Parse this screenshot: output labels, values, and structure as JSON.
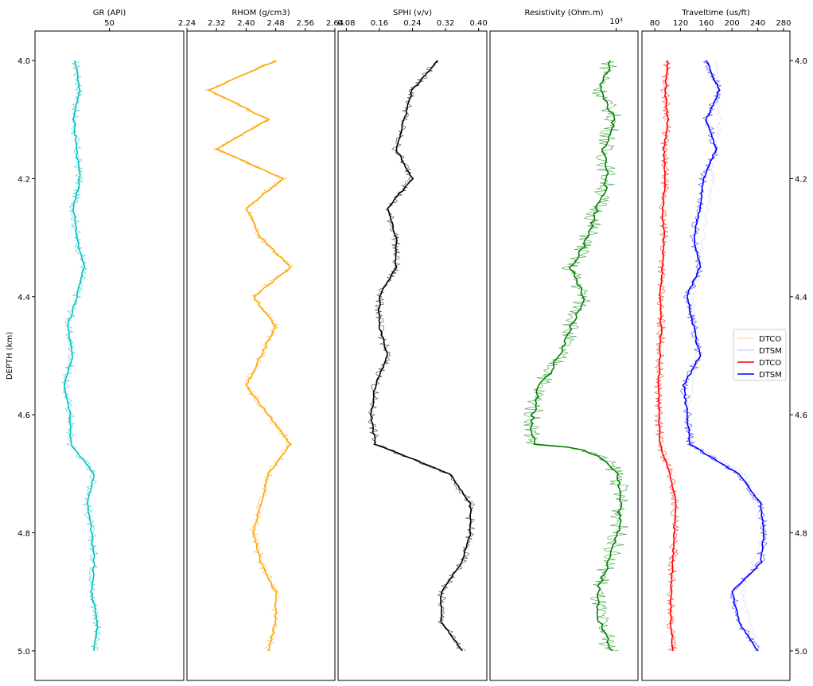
{
  "chart_data": {
    "type": "line",
    "depth_axis": {
      "label": "DEPTH (km)",
      "range": [
        3.95,
        5.05
      ],
      "ticks": [
        "4.0",
        "4.2",
        "4.4",
        "4.6",
        "4.8",
        "5.0"
      ]
    },
    "tracks": [
      {
        "title": "GR (API)",
        "scale": "linear",
        "xlim": [
          0,
          100
        ],
        "ticks": [
          {
            "value": 50,
            "label": "50"
          }
        ],
        "series": [
          {
            "name": "GR",
            "color": "#00bfbf",
            "style": "bold",
            "depth": [
              4.0,
              4.05,
              4.1,
              4.15,
              4.2,
              4.25,
              4.3,
              4.35,
              4.4,
              4.45,
              4.5,
              4.55,
              4.6,
              4.65,
              4.7,
              4.75,
              4.8,
              4.85,
              4.9,
              4.95,
              5.0
            ],
            "values": [
              27,
              30,
              26,
              28,
              30,
              26,
              28,
              33,
              28,
              22,
              25,
              20,
              24,
              24,
              40,
              35,
              38,
              40,
              38,
              42,
              40
            ]
          }
        ]
      },
      {
        "title": "RHOM (g/cm3)",
        "scale": "linear",
        "xlim": [
          2.24,
          2.64
        ],
        "ticks": [
          {
            "value": 2.24,
            "label": "2.24"
          },
          {
            "value": 2.32,
            "label": "2.32"
          },
          {
            "value": 2.4,
            "label": "2.40"
          },
          {
            "value": 2.48,
            "label": "2.48"
          },
          {
            "value": 2.56,
            "label": "2.56"
          },
          {
            "value": 2.64,
            "label": "2.64"
          }
        ],
        "series": [
          {
            "name": "RHOM",
            "color": "#ffa500",
            "style": "bold",
            "depth": [
              4.0,
              4.05,
              4.1,
              4.15,
              4.2,
              4.25,
              4.3,
              4.35,
              4.4,
              4.45,
              4.5,
              4.55,
              4.6,
              4.65,
              4.7,
              4.75,
              4.8,
              4.85,
              4.9,
              4.95,
              5.0
            ],
            "values": [
              2.48,
              2.3,
              2.46,
              2.32,
              2.5,
              2.4,
              2.44,
              2.52,
              2.42,
              2.48,
              2.44,
              2.4,
              2.46,
              2.52,
              2.46,
              2.44,
              2.42,
              2.44,
              2.48,
              2.48,
              2.46
            ]
          }
        ]
      },
      {
        "title": "SPHI (v/v)",
        "scale": "linear",
        "xlim": [
          0.06,
          0.42
        ],
        "ticks": [
          {
            "value": 0.08,
            "label": "0.08"
          },
          {
            "value": 0.16,
            "label": "0.16"
          },
          {
            "value": 0.24,
            "label": "0.24"
          },
          {
            "value": 0.32,
            "label": "0.32"
          },
          {
            "value": 0.4,
            "label": "0.40"
          }
        ],
        "series": [
          {
            "name": "SPHI",
            "color": "#000000",
            "style": "bold",
            "depth": [
              4.0,
              4.05,
              4.1,
              4.15,
              4.2,
              4.25,
              4.3,
              4.35,
              4.4,
              4.45,
              4.5,
              4.55,
              4.6,
              4.65,
              4.7,
              4.75,
              4.8,
              4.85,
              4.9,
              4.95,
              5.0
            ],
            "values": [
              0.3,
              0.24,
              0.22,
              0.2,
              0.24,
              0.18,
              0.2,
              0.2,
              0.16,
              0.16,
              0.18,
              0.15,
              0.14,
              0.15,
              0.33,
              0.38,
              0.38,
              0.36,
              0.31,
              0.31,
              0.36
            ]
          }
        ]
      },
      {
        "title": "Resistivity (Ohm.m)",
        "scale": "log",
        "xlim": [
          5,
          2500
        ],
        "ticks": [
          {
            "value": 1000,
            "label": "10³"
          }
        ],
        "series": [
          {
            "name": "Resistivity",
            "color": "#008000",
            "style": "bold",
            "depth": [
              4.0,
              4.05,
              4.1,
              4.15,
              4.2,
              4.25,
              4.3,
              4.35,
              4.4,
              4.45,
              4.5,
              4.55,
              4.6,
              4.65,
              4.7,
              4.75,
              4.8,
              4.85,
              4.9,
              4.95,
              5.0
            ],
            "values": [
              800,
              500,
              900,
              600,
              700,
              450,
              300,
              140,
              250,
              150,
              90,
              40,
              30,
              30,
              1100,
              1200,
              1100,
              700,
              450,
              500,
              800
            ]
          }
        ]
      },
      {
        "title": "Traveltime (us/ft)",
        "scale": "linear",
        "xlim": [
          60,
          290
        ],
        "ticks": [
          {
            "value": 80,
            "label": "80"
          },
          {
            "value": 120,
            "label": "120"
          },
          {
            "value": 160,
            "label": "160"
          },
          {
            "value": 200,
            "label": "200"
          },
          {
            "value": 240,
            "label": "240"
          },
          {
            "value": 280,
            "label": "280"
          }
        ],
        "series": [
          {
            "name": "DTCO",
            "color": "#ff8c00",
            "style": "thin",
            "depth": [
              4.0,
              4.1,
              4.2,
              4.3,
              4.4,
              4.5,
              4.6,
              4.65,
              4.7,
              4.8,
              4.9,
              5.0
            ],
            "values": [
              100,
              98,
              96,
              94,
              90,
              90,
              88,
              90,
              110,
              110,
              106,
              108
            ]
          },
          {
            "name": "DTSM",
            "color": "#6a5acd",
            "style": "thin",
            "depth": [
              4.0,
              4.1,
              4.2,
              4.3,
              4.4,
              4.5,
              4.6,
              4.65,
              4.7,
              4.8,
              4.9,
              5.0
            ],
            "values": [
              175,
              180,
              170,
              155,
              140,
              145,
              130,
              140,
              220,
              250,
              215,
              240
            ]
          },
          {
            "name": "DTCO",
            "color": "#ff0000",
            "style": "bold",
            "depth": [
              4.0,
              4.05,
              4.1,
              4.15,
              4.2,
              4.25,
              4.3,
              4.35,
              4.4,
              4.45,
              4.5,
              4.55,
              4.6,
              4.65,
              4.7,
              4.75,
              4.8,
              4.85,
              4.9,
              4.95,
              5.0
            ],
            "values": [
              100,
              96,
              100,
              94,
              96,
              92,
              94,
              92,
              88,
              90,
              88,
              86,
              86,
              88,
              104,
              112,
              110,
              108,
              105,
              105,
              108
            ]
          },
          {
            "name": "DTSM",
            "color": "#0000ff",
            "style": "bold",
            "depth": [
              4.0,
              4.05,
              4.1,
              4.15,
              4.2,
              4.25,
              4.3,
              4.35,
              4.4,
              4.45,
              4.5,
              4.55,
              4.6,
              4.65,
              4.7,
              4.75,
              4.8,
              4.85,
              4.9,
              4.95,
              5.0
            ],
            "values": [
              160,
              180,
              160,
              175,
              155,
              150,
              140,
              150,
              130,
              140,
              150,
              125,
              130,
              135,
              210,
              245,
              250,
              245,
              200,
              210,
              240
            ]
          }
        ]
      }
    ],
    "legend": {
      "placement": "right of last track, mid-depth",
      "entries": [
        "DTCO",
        "DTSM",
        "DTCO",
        "DTSM"
      ]
    }
  }
}
